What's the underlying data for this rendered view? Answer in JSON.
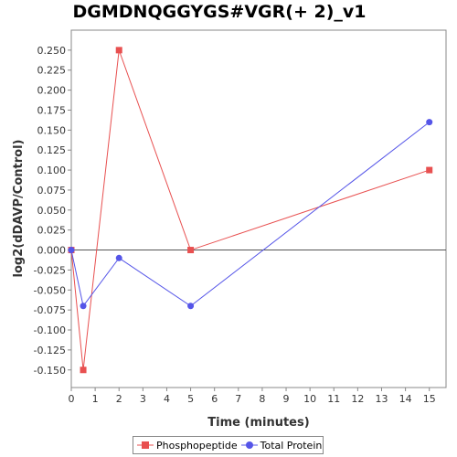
{
  "chart_data": {
    "type": "line",
    "title": "DGMDNQGGYGS#VGR(+ 2)_v1",
    "xlabel": "Time (minutes)",
    "ylabel": "log2(dDAVP/Control)",
    "xlim": [
      0,
      15.7
    ],
    "ylim": [
      -0.172,
      0.275
    ],
    "x_ticks": [
      "0",
      "1",
      "2",
      "3",
      "4",
      "5",
      "6",
      "7",
      "8",
      "9",
      "10",
      "11",
      "12",
      "13",
      "14",
      "15"
    ],
    "y_ticks": [
      "0.250",
      "0.225",
      "0.200",
      "0.175",
      "0.150",
      "0.125",
      "0.100",
      "0.075",
      "0.050",
      "0.025",
      "0.000",
      "-0.025",
      "-0.050",
      "-0.075",
      "-0.100",
      "-0.125",
      "-0.150"
    ],
    "series": [
      {
        "name": "Phosphopeptide",
        "color": "#e85050",
        "marker": "square",
        "x": [
          0,
          0.5,
          2,
          5,
          15
        ],
        "y": [
          0.0,
          -0.15,
          0.25,
          0.0,
          0.1
        ]
      },
      {
        "name": "Total Protein",
        "color": "#5555e8",
        "marker": "circle",
        "x": [
          0,
          0.5,
          2,
          5,
          15
        ],
        "y": [
          0.0,
          -0.07,
          -0.01,
          -0.07,
          0.16
        ]
      }
    ],
    "grid": false,
    "zero_line": true,
    "legend": "bottom"
  }
}
